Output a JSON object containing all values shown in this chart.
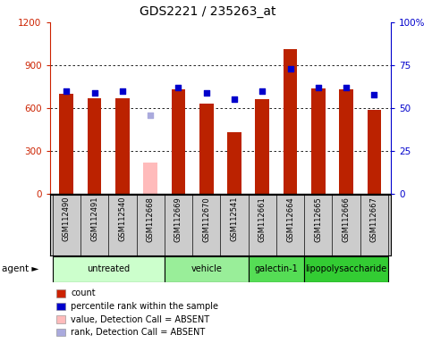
{
  "title": "GDS2221 / 235263_at",
  "samples": [
    "GSM112490",
    "GSM112491",
    "GSM112540",
    "GSM112668",
    "GSM112669",
    "GSM112670",
    "GSM112541",
    "GSM112661",
    "GSM112664",
    "GSM112665",
    "GSM112666",
    "GSM112667"
  ],
  "bar_values": [
    700,
    670,
    670,
    null,
    730,
    630,
    430,
    660,
    1010,
    740,
    730,
    590
  ],
  "bar_absent_value": 220,
  "bar_absent_index": 3,
  "bar_colors": [
    "#bb2200",
    "#bb2200",
    "#bb2200",
    "#ffbbbb",
    "#bb2200",
    "#bb2200",
    "#bb2200",
    "#bb2200",
    "#bb2200",
    "#bb2200",
    "#bb2200",
    "#bb2200"
  ],
  "dot_values": [
    60,
    59,
    60,
    null,
    62,
    59,
    55,
    60,
    73,
    62,
    62,
    58
  ],
  "dot_absent_value": 46,
  "dot_absent_index": 3,
  "dot_color": "#0000cc",
  "dot_absent_color": "#aaaadd",
  "ylim_left": [
    0,
    1200
  ],
  "ylim_right": [
    0,
    100
  ],
  "yticks_left": [
    0,
    300,
    600,
    900,
    1200
  ],
  "yticks_right": [
    0,
    25,
    50,
    75,
    100
  ],
  "groups": [
    {
      "label": "untreated",
      "indices": [
        0,
        1,
        2,
        3
      ],
      "color": "#ccffcc"
    },
    {
      "label": "vehicle",
      "indices": [
        4,
        5,
        6
      ],
      "color": "#99ee99"
    },
    {
      "label": "galectin-1",
      "indices": [
        7,
        8
      ],
      "color": "#55dd55"
    },
    {
      "label": "lipopolysaccharide",
      "indices": [
        9,
        10,
        11
      ],
      "color": "#33cc33"
    }
  ],
  "agent_label": "agent ►",
  "legend_items": [
    {
      "label": "count",
      "color": "#cc2200"
    },
    {
      "label": "percentile rank within the sample",
      "color": "#0000cc"
    },
    {
      "label": "value, Detection Call = ABSENT",
      "color": "#ffbbbb"
    },
    {
      "label": "rank, Detection Call = ABSENT",
      "color": "#aaaadd"
    }
  ],
  "bar_width": 0.5,
  "dot_size": 22,
  "grid_color": "#000000",
  "bg_color": "#ffffff",
  "tick_label_color_left": "#cc2200",
  "tick_label_color_right": "#0000cc",
  "title_fontsize": 10,
  "tick_fontsize": 7.5,
  "sample_bg_color": "#cccccc",
  "sample_border_color": "#888888"
}
